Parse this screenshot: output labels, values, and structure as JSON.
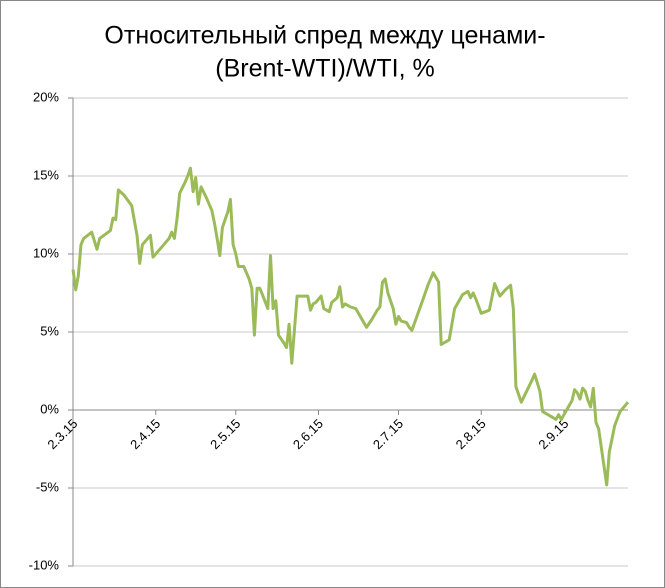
{
  "chart_data": {
    "type": "line",
    "title": [
      "Относительный спред между ценами-",
      "(Brent-WTI)/WTI, %"
    ],
    "x": [
      "2015-03-02",
      "2015-03-03",
      "2015-03-04",
      "2015-03-05",
      "2015-03-06",
      "2015-03-09",
      "2015-03-11",
      "2015-03-12",
      "2015-03-16",
      "2015-03-17",
      "2015-03-18",
      "2015-03-19",
      "2015-03-21",
      "2015-03-24",
      "2015-03-26",
      "2015-03-27",
      "2015-03-28",
      "2015-03-31",
      "2015-04-01",
      "2015-04-04",
      "2015-04-07",
      "2015-04-08",
      "2015-04-09",
      "2015-04-10",
      "2015-04-11",
      "2015-04-13",
      "2015-04-14",
      "2015-04-15",
      "2015-04-16",
      "2015-04-17",
      "2015-04-18",
      "2015-04-19",
      "2015-04-21",
      "2015-04-23",
      "2015-04-24",
      "2015-04-25",
      "2015-04-26",
      "2015-04-27",
      "2015-04-29",
      "2015-04-30",
      "2015-05-01",
      "2015-05-02",
      "2015-05-03",
      "2015-05-05",
      "2015-05-06",
      "2015-05-07",
      "2015-05-08",
      "2015-05-09",
      "2015-05-10",
      "2015-05-11",
      "2015-05-12",
      "2015-05-14",
      "2015-05-15",
      "2015-05-16",
      "2015-05-17",
      "2015-05-18",
      "2015-05-20",
      "2015-05-21",
      "2015-05-22",
      "2015-05-23",
      "2015-05-25",
      "2015-05-29",
      "2015-05-30",
      "2015-05-31",
      "2015-06-01",
      "2015-06-03",
      "2015-06-04",
      "2015-06-06",
      "2015-06-07",
      "2015-06-09",
      "2015-06-10",
      "2015-06-11",
      "2015-06-12",
      "2015-06-14",
      "2015-06-16",
      "2015-06-20",
      "2015-06-22",
      "2015-06-24",
      "2015-06-25",
      "2015-06-26",
      "2015-06-27",
      "2015-06-28",
      "2015-06-30",
      "2015-07-01",
      "2015-07-02",
      "2015-07-03",
      "2015-07-05",
      "2015-07-06",
      "2015-07-07",
      "2015-07-11",
      "2015-07-13",
      "2015-07-15",
      "2015-07-17",
      "2015-07-18",
      "2015-07-21",
      "2015-07-23",
      "2015-07-26",
      "2015-07-28",
      "2015-07-29",
      "2015-07-30",
      "2015-07-31",
      "2015-08-02",
      "2015-08-05",
      "2015-08-06",
      "2015-08-07",
      "2015-08-09",
      "2015-08-11",
      "2015-08-13",
      "2015-08-14",
      "2015-08-15",
      "2015-08-17",
      "2015-08-19",
      "2015-08-21",
      "2015-08-22",
      "2015-08-24",
      "2015-08-25",
      "2015-08-27",
      "2015-08-29",
      "2015-08-30",
      "2015-08-31",
      "2015-09-01",
      "2015-09-03",
      "2015-09-05",
      "2015-09-06",
      "2015-09-07",
      "2015-09-08",
      "2015-09-09",
      "2015-09-10",
      "2015-09-11",
      "2015-09-12",
      "2015-09-13",
      "2015-09-14",
      "2015-09-15",
      "2015-09-18",
      "2015-09-19",
      "2015-09-21",
      "2015-09-23",
      "2015-09-26"
    ],
    "values": [
      9.0,
      7.7,
      8.6,
      10.6,
      11.0,
      11.4,
      10.3,
      11.0,
      11.5,
      12.3,
      12.2,
      14.1,
      13.8,
      13.1,
      11.2,
      9.4,
      10.6,
      11.2,
      9.8,
      10.4,
      11.0,
      11.4,
      11.0,
      12.3,
      13.9,
      14.6,
      15.0,
      15.5,
      14.0,
      14.9,
      13.2,
      14.3,
      13.6,
      12.8,
      12.0,
      11.0,
      9.9,
      11.7,
      12.7,
      13.5,
      10.6,
      10.0,
      9.2,
      9.2,
      8.8,
      8.4,
      7.8,
      4.8,
      7.8,
      7.8,
      7.4,
      6.5,
      9.9,
      6.5,
      7.0,
      4.8,
      4.3,
      4.0,
      5.5,
      3.0,
      7.3,
      7.3,
      6.4,
      6.8,
      6.9,
      7.3,
      6.5,
      6.3,
      6.9,
      7.2,
      7.9,
      6.6,
      6.8,
      6.6,
      6.5,
      5.3,
      5.8,
      6.4,
      6.6,
      8.2,
      8.4,
      7.5,
      6.5,
      5.5,
      6.0,
      5.7,
      5.6,
      5.3,
      5.1,
      7.0,
      8.0,
      8.8,
      8.2,
      4.2,
      4.5,
      6.5,
      7.4,
      7.6,
      7.2,
      7.5,
      7.1,
      6.2,
      6.4,
      7.2,
      8.1,
      7.3,
      7.7,
      8.0,
      6.5,
      1.5,
      0.5,
      1.2,
      1.9,
      2.3,
      1.2,
      -0.1,
      -0.3,
      -0.5,
      -0.6,
      -0.3,
      -0.6,
      0.0,
      0.6,
      1.3,
      1.1,
      0.7,
      1.4,
      1.2,
      0.6,
      0.2,
      1.4,
      -0.8,
      -1.2,
      -4.8,
      -2.7,
      -1.0,
      -0.1,
      0.5
    ],
    "color": "#9bbb59",
    "xlim": [
      "2015-03-02",
      "2015-09-26"
    ],
    "xticks": [
      {
        "value": "2015-03-02",
        "label": "2.3.15"
      },
      {
        "value": "2015-04-02",
        "label": "2.4.15"
      },
      {
        "value": "2015-05-02",
        "label": "2.5.15"
      },
      {
        "value": "2015-06-02",
        "label": "2.6.15"
      },
      {
        "value": "2015-07-02",
        "label": "2.7.15"
      },
      {
        "value": "2015-08-02",
        "label": "2.8.15"
      },
      {
        "value": "2015-09-02",
        "label": "2.9.15"
      }
    ],
    "ylim": [
      -10,
      20
    ],
    "yticks": [
      {
        "value": -10,
        "label": "-10%"
      },
      {
        "value": -5,
        "label": "-5%"
      },
      {
        "value": 0,
        "label": "0%"
      },
      {
        "value": 5,
        "label": "5%"
      },
      {
        "value": 10,
        "label": "10%"
      },
      {
        "value": 15,
        "label": "15%"
      },
      {
        "value": 20,
        "label": "20%"
      }
    ],
    "grid": true
  }
}
